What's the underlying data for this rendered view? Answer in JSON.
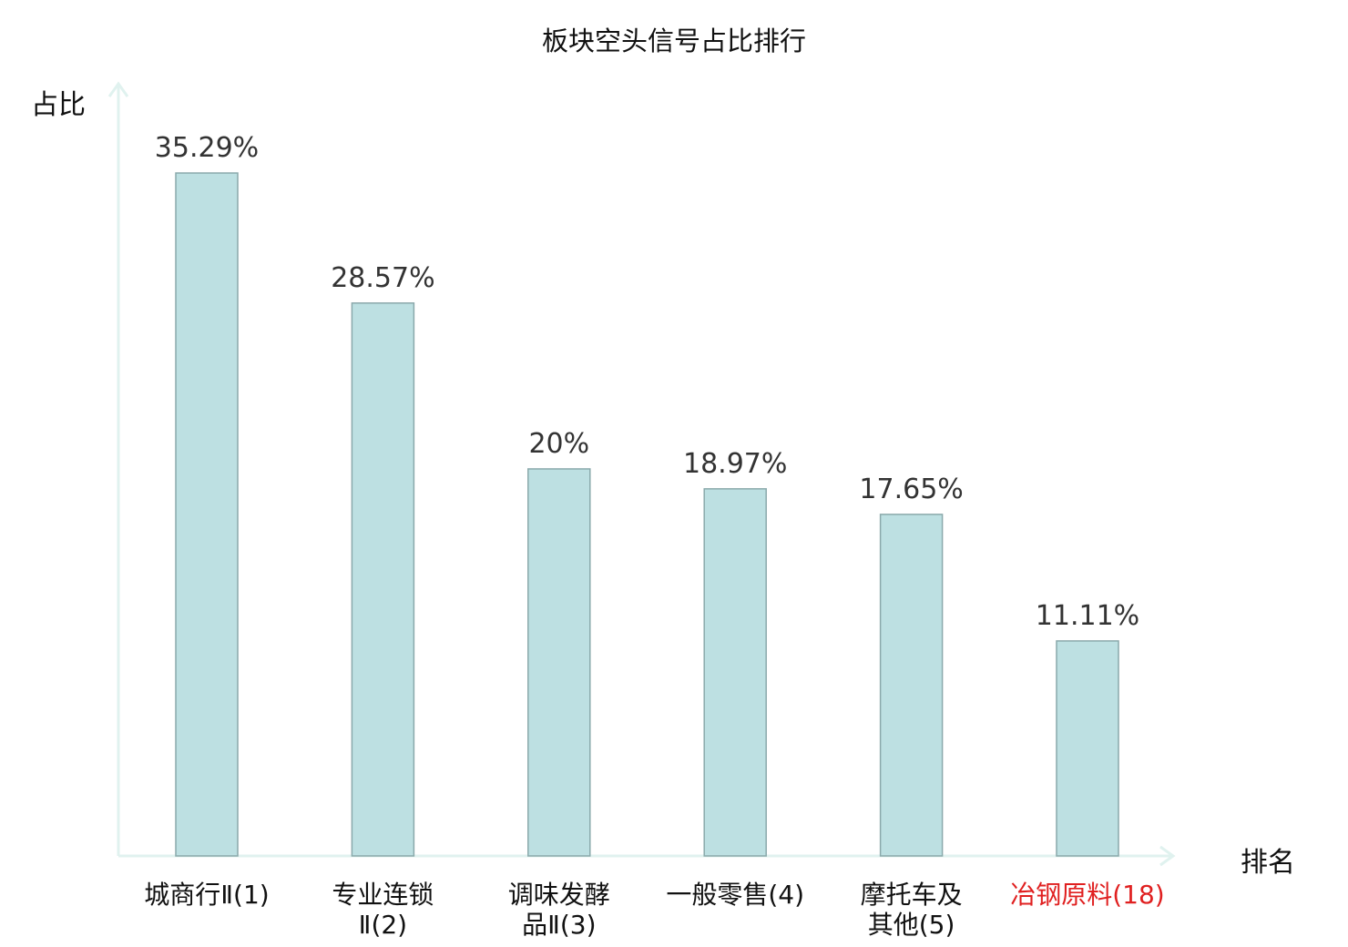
{
  "chart_data": {
    "type": "bar",
    "title": "板块空头信号占比排行",
    "ylabel": "占比",
    "xlabel": "排名",
    "ylim": [
      0,
      40
    ],
    "categories": [
      "城商行Ⅱ(1)",
      "专业连锁Ⅱ(2)",
      "调味发酵品Ⅱ(3)",
      "一般零售(4)",
      "摩托车及其他(5)",
      "冶钢原料(18)"
    ],
    "category_lines": [
      [
        "城商行Ⅱ(1)"
      ],
      [
        "专业连锁",
        "Ⅱ(2)"
      ],
      [
        "调味发酵",
        "品Ⅱ(3)"
      ],
      [
        "一般零售(4)"
      ],
      [
        "摩托车及",
        "其他(5)"
      ],
      [
        "冶钢原料(18)"
      ]
    ],
    "values": [
      35.29,
      28.57,
      20,
      18.97,
      17.65,
      11.11
    ],
    "data_labels": [
      "35.29%",
      "28.57%",
      "20%",
      "18.97%",
      "17.65%",
      "11.11%"
    ],
    "highlighted_index": 5,
    "grid": false,
    "legend": "none"
  },
  "colors": {
    "bar_fill": "#bde0e2",
    "bar_stroke": "#8aa9ab",
    "axis": "#e0f2ef",
    "highlight_label": "#e02020",
    "label_text": "#333333"
  }
}
